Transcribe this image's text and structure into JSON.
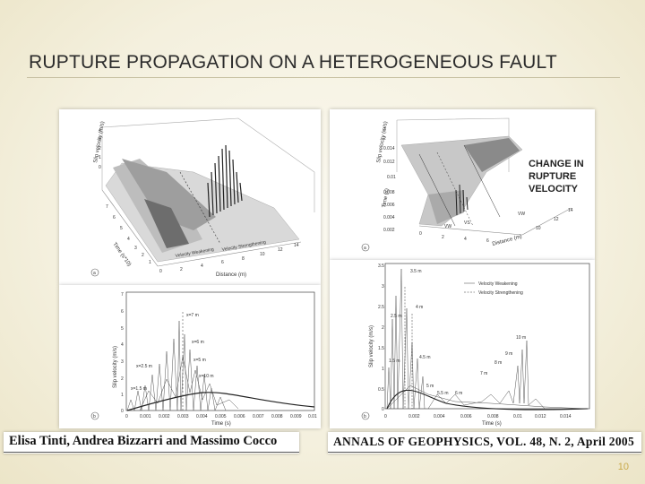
{
  "slide": {
    "title": "RUPTURE PROPAGATION ON A HETEROGENEOUS FAULT",
    "page_number": "10"
  },
  "captions": {
    "authors": "Elisa Tinti, Andrea Bizzarri and Massimo Cocco",
    "journal": "ANNALS OF GEOPHYSICS, VOL. 48, N. 2, April 2005"
  },
  "figures": {
    "left_top": {
      "panel_letter": "a",
      "z_label": "Slip velocity (m/s)",
      "y_label": "Time (s*10)",
      "x_label": "Distance (m)",
      "regions": [
        "Velocity Weakening",
        "Velocity Strengthening"
      ]
    },
    "left_bottom": {
      "panel_letter": "b",
      "y_label": "Slip velocity (m/s)",
      "x_label": "Time (s)",
      "annotations": [
        "x=7 m",
        "x=6 m",
        "x=5 m",
        "x=10 m",
        "x=2.5 m",
        "x=1.5 m"
      ]
    },
    "right_top": {
      "panel_letter": "a",
      "z_label": "Slip velocity (m/s)",
      "y_label": "Time (s)",
      "x_label": "Distance (m)",
      "callout": [
        "CHANGE IN",
        "RUPTURE",
        "VELOCITY"
      ],
      "region_labels": [
        "VW",
        "VS",
        "VW"
      ]
    },
    "right_bottom": {
      "panel_letter": "b",
      "y_label": "Slip velocity (m/s)",
      "x_label": "Time (s)",
      "legend": [
        "Velocity Weakening",
        "Velocity Strengthening"
      ],
      "annotations": [
        "3.5 m",
        "4 m",
        "2.5 m",
        "1.5 m",
        "4.5 m",
        "5 m",
        "5.5 m",
        "6 m",
        "7 m",
        "8 m",
        "9 m",
        "10 m"
      ]
    }
  }
}
